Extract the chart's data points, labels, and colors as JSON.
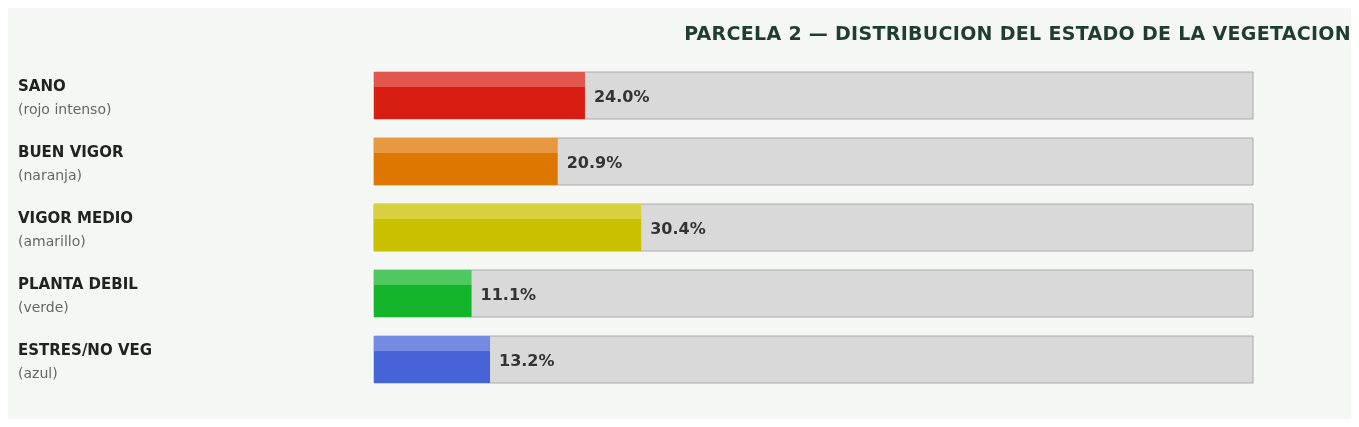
{
  "chart_data": {
    "type": "bar",
    "orientation": "horizontal",
    "title": "PARCELA 2 — DISTRIBUCION DEL ESTADO DE LA VEGETACION",
    "categories": [
      "SANO\n(rojo intenso)",
      "BUEN VIGOR\n(naranja)",
      "VIGOR MEDIO\n(amarillo)",
      "PLANTA DEBIL\n(verde)",
      "ESTRES/NO VEG\n(azul)"
    ],
    "values": [
      24.0,
      20.9,
      30.4,
      11.1,
      13.2
    ],
    "colors": [
      "#d81e12",
      "#dd7700",
      "#c9c100",
      "#14b52a",
      "#4763d8"
    ],
    "value_labels": [
      "24.0%",
      "20.9%",
      "30.4%",
      "11.1%",
      "13.2%"
    ],
    "xlim": [
      0,
      100
    ],
    "tick_labels": "y"
  }
}
